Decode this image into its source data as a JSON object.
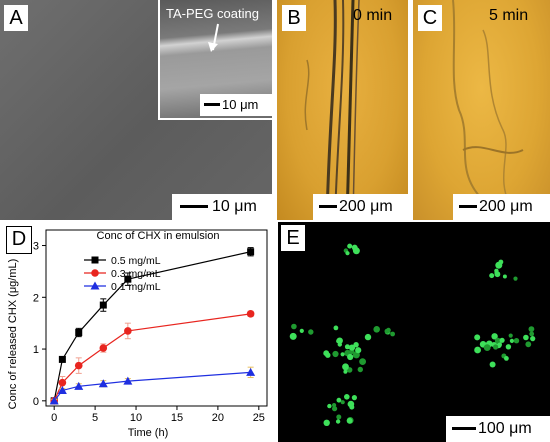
{
  "panels": {
    "A": {
      "label": "A",
      "inset_caption": "TA-PEG coating",
      "inset_scalebar": "10 μm",
      "scalebar": "10 μm"
    },
    "B": {
      "label": "B",
      "time": "0 min",
      "scalebar": "200 μm"
    },
    "C": {
      "label": "C",
      "time": "5 min",
      "scalebar": "200 μm"
    },
    "D": {
      "label": "D"
    },
    "E": {
      "label": "E",
      "scalebar": "100 μm"
    }
  },
  "chart_data": {
    "type": "line",
    "title": "Conc of CHX in emulsion",
    "xlabel": "Time (h)",
    "ylabel": "Conc of released CHX (μg/mL)",
    "xlim": [
      -1,
      26
    ],
    "ylim": [
      -0.1,
      3.3
    ],
    "xticks": [
      0,
      5,
      10,
      15,
      20,
      25
    ],
    "yticks": [
      0,
      1,
      2,
      3
    ],
    "legend_position": "top-left",
    "x": [
      0,
      1,
      3,
      6,
      9,
      24
    ],
    "series": [
      {
        "name": "0.5 mg/mL",
        "color": "#000000",
        "marker": "square",
        "values": [
          0.0,
          0.8,
          1.32,
          1.85,
          2.35,
          2.88
        ],
        "errors": [
          0.03,
          0.05,
          0.08,
          0.12,
          0.12,
          0.08
        ]
      },
      {
        "name": "0.3 mg/mL",
        "color": "#e8251f",
        "marker": "circle",
        "values": [
          0.0,
          0.35,
          0.68,
          1.02,
          1.35,
          1.68
        ],
        "errors": [
          0.03,
          0.12,
          0.15,
          0.08,
          0.15,
          0.05
        ]
      },
      {
        "name": "0.1 mg/mL",
        "color": "#1f2fe0",
        "marker": "triangle",
        "values": [
          0.0,
          0.2,
          0.28,
          0.33,
          0.38,
          0.55
        ],
        "errors": [
          0.03,
          0.04,
          0.05,
          0.06,
          0.05,
          0.1
        ]
      }
    ]
  }
}
